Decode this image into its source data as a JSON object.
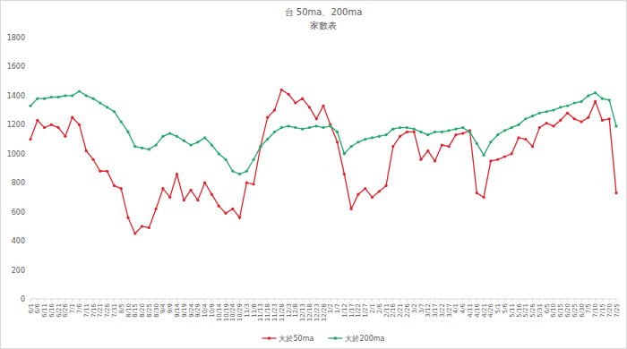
{
  "chart_data": {
    "type": "line",
    "title": "台 50ma、200ma",
    "subtitle": "家數表",
    "categories": [
      "6/1",
      "6/6",
      "6/11",
      "6/16",
      "6/21",
      "6/26",
      "7/1",
      "7/6",
      "7/11",
      "7/16",
      "7/21",
      "7/26",
      "7/31",
      "8/5",
      "8/10",
      "8/15",
      "8/20",
      "8/25",
      "8/30",
      "9/4",
      "9/9",
      "9/14",
      "9/19",
      "9/24",
      "9/29",
      "10/4",
      "10/9",
      "10/14",
      "10/19",
      "10/24",
      "10/29",
      "11/3",
      "11/8",
      "11/13",
      "11/18",
      "11/23",
      "11/28",
      "12/3",
      "12/8",
      "12/13",
      "12/18",
      "12/23",
      "12/28",
      "1/2",
      "1/7",
      "1/12",
      "1/17",
      "1/22",
      "1/27",
      "2/1",
      "2/6",
      "2/11",
      "2/16",
      "2/21",
      "2/26",
      "3/2",
      "3/7",
      "3/12",
      "3/17",
      "3/22",
      "3/27",
      "4/1",
      "4/6",
      "4/11",
      "4/16",
      "4/21",
      "4/26",
      "5/1",
      "5/6",
      "5/11",
      "5/16",
      "5/21",
      "5/26",
      "5/31",
      "6/5",
      "6/10",
      "6/15",
      "6/20",
      "6/25",
      "6/30",
      "7/5",
      "7/10",
      "7/15",
      "7/20",
      "7/25"
    ],
    "series": [
      {
        "name": "大於50ma",
        "color": "#e3222b",
        "marker": "circle",
        "values": [
          1100,
          1230,
          1180,
          1200,
          1180,
          1120,
          1250,
          1200,
          1020,
          960,
          880,
          880,
          780,
          760,
          560,
          450,
          500,
          490,
          620,
          760,
          700,
          860,
          680,
          750,
          680,
          800,
          720,
          640,
          590,
          620,
          560,
          800,
          790,
          1050,
          1250,
          1300,
          1440,
          1410,
          1350,
          1380,
          1320,
          1240,
          1330,
          1200,
          1080,
          860,
          620,
          720,
          760,
          700,
          740,
          780,
          1050,
          1120,
          1150,
          1150,
          960,
          1020,
          950,
          1060,
          1050,
          1130,
          1140,
          1160,
          730,
          700,
          950,
          960,
          980,
          1000,
          1110,
          1100,
          1050,
          1180,
          1210,
          1190,
          1230,
          1280,
          1240,
          1220,
          1250,
          1360,
          1230,
          1240,
          730
        ]
      },
      {
        "name": "大於200ma",
        "color": "#22a86b",
        "marker": "circle",
        "values": [
          1330,
          1380,
          1380,
          1390,
          1390,
          1400,
          1400,
          1430,
          1400,
          1380,
          1350,
          1320,
          1290,
          1220,
          1150,
          1050,
          1040,
          1030,
          1060,
          1120,
          1140,
          1120,
          1090,
          1060,
          1080,
          1110,
          1060,
          1000,
          960,
          880,
          860,
          880,
          960,
          1050,
          1100,
          1150,
          1180,
          1190,
          1180,
          1170,
          1180,
          1190,
          1180,
          1190,
          1150,
          1000,
          1050,
          1080,
          1100,
          1110,
          1120,
          1130,
          1170,
          1180,
          1180,
          1170,
          1150,
          1130,
          1150,
          1150,
          1160,
          1170,
          1180,
          1150,
          1070,
          990,
          1080,
          1130,
          1160,
          1180,
          1200,
          1240,
          1260,
          1280,
          1290,
          1300,
          1320,
          1330,
          1350,
          1360,
          1400,
          1420,
          1380,
          1370,
          1190
        ]
      }
    ],
    "ylim": [
      0,
      1800
    ],
    "yticks": [
      0,
      200,
      400,
      600,
      800,
      1000,
      1200,
      1400,
      1600,
      1800
    ],
    "grid": false,
    "legend": "bottom"
  }
}
